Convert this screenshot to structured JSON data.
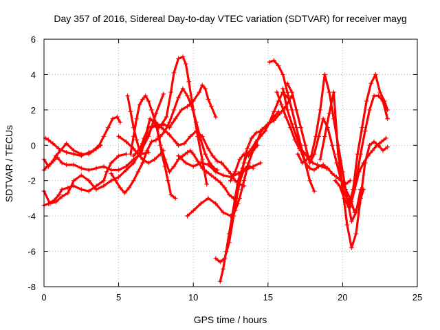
{
  "chart_data": {
    "type": "scatter",
    "title": "Day 357 of 2016, Sidereal Day-to-day VTEC variation (SDTVAR) for receiver mayg",
    "xlabel": "GPS time / hours",
    "ylabel": "SDTVAR / TECUs",
    "xlim": [
      0,
      25
    ],
    "ylim": [
      -8,
      6
    ],
    "xticks": [
      0,
      5,
      10,
      15,
      20,
      25
    ],
    "yticks": [
      -8,
      -6,
      -4,
      -2,
      0,
      2,
      4,
      6
    ],
    "grid": true,
    "marker": "+",
    "color": "#ff0000",
    "series": [
      {
        "x": [
          0.0,
          0.2,
          0.5,
          0.8,
          1.1,
          1.5,
          2.0,
          2.5,
          3.0,
          3.5,
          3.8
        ],
        "y": [
          -1.4,
          -1.2,
          -1.0,
          -0.6,
          -0.3,
          0.1,
          -0.3,
          -0.5,
          -0.5,
          -0.2,
          0.0
        ]
      },
      {
        "x": [
          0.1,
          0.3,
          0.6,
          1.0,
          1.5,
          2.0,
          2.5,
          3.0,
          3.3,
          3.7,
          4.0,
          4.3,
          4.6,
          4.9,
          5.1
        ],
        "y": [
          0.4,
          0.3,
          0.1,
          -0.2,
          -0.4,
          -0.5,
          -0.6,
          -0.4,
          -0.3,
          0.0,
          0.5,
          1.0,
          1.5,
          1.6,
          1.3
        ]
      },
      {
        "x": [
          0.0,
          0.3,
          0.6,
          0.9,
          1.2,
          1.5,
          2.0,
          2.5,
          3.0,
          3.5,
          4.0,
          4.5,
          5.0,
          5.5,
          6.0,
          6.5,
          7.0
        ],
        "y": [
          -0.8,
          -1.2,
          -0.9,
          -0.7,
          -1.0,
          -1.1,
          -1.1,
          -1.3,
          -1.4,
          -1.3,
          -1.2,
          -1.4,
          -1.4,
          -1.2,
          -0.8,
          -0.5,
          -0.4
        ]
      },
      {
        "x": [
          0.0,
          0.3,
          0.7,
          1.0,
          1.2,
          1.6,
          2.0,
          2.5,
          3.0,
          3.5,
          4.0,
          4.2,
          4.5,
          5.0,
          5.5
        ],
        "y": [
          -3.4,
          -3.3,
          -3.1,
          -2.8,
          -2.5,
          -2.4,
          -2.3,
          -2.5,
          -2.6,
          -2.3,
          -2.0,
          -1.5,
          -1.0,
          -0.6,
          -0.5
        ]
      },
      {
        "x": [
          0.0,
          0.4,
          0.8,
          1.2,
          1.6,
          2.0,
          2.5,
          3.0,
          3.5,
          4.0,
          4.5,
          5.0,
          5.5,
          6.0,
          6.5,
          7.0,
          7.5,
          8.0
        ],
        "y": [
          -2.6,
          -3.3,
          -3.2,
          -2.9,
          -2.7,
          -2.0,
          -1.7,
          -2.0,
          -2.5,
          -2.3,
          -2.0,
          -1.8,
          -1.4,
          -1.0,
          -0.3,
          0.5,
          1.8,
          2.9
        ]
      },
      {
        "x": [
          4.5,
          4.8,
          5.1,
          5.4,
          5.7,
          6.0,
          6.3,
          6.6,
          6.9,
          7.2,
          7.5,
          7.8,
          8.1,
          8.4,
          8.7,
          9.0,
          9.3,
          9.6,
          9.9,
          10.2,
          10.5,
          10.8,
          11.1,
          11.4,
          11.6
        ],
        "y": [
          -1.6,
          -2.0,
          -2.4,
          -2.7,
          -2.4,
          -2.0,
          -1.5,
          -1.0,
          -0.3,
          0.2,
          0.3,
          0.5,
          0.8,
          1.3,
          2.0,
          2.7,
          3.2,
          2.8,
          2.2,
          1.3,
          0.3,
          -0.5,
          -1.0,
          -1.3,
          -1.4
        ]
      },
      {
        "x": [
          5.0,
          5.5,
          6.0,
          6.3,
          6.6,
          7.0,
          7.4,
          7.8,
          8.0
        ],
        "y": [
          0.5,
          0.2,
          -0.2,
          -0.5,
          -0.8,
          -1.0,
          -0.8,
          -0.5,
          -0.3
        ]
      },
      {
        "x": [
          5.8,
          6.0,
          6.2,
          6.4,
          6.6,
          6.8,
          7.0,
          7.2,
          7.5,
          7.8,
          8.1,
          8.4,
          8.7,
          9.0,
          9.3,
          9.6,
          9.8,
          10.0,
          10.3,
          10.6,
          10.9,
          11.2,
          11.5,
          11.8,
          12.1,
          12.4,
          12.7,
          13.0
        ],
        "y": [
          -0.5,
          0.5,
          1.5,
          2.3,
          2.6,
          2.8,
          2.5,
          2.0,
          1.2,
          0.0,
          -0.8,
          -1.5,
          -1.2,
          -0.8,
          -0.6,
          -0.4,
          -0.3,
          -0.5,
          -0.9,
          -1.3,
          -1.5,
          -1.7,
          -1.9,
          -2.1,
          -2.4,
          -2.8,
          -3.0,
          -3.3
        ]
      },
      {
        "x": [
          5.6,
          5.8,
          6.0,
          6.2,
          6.4,
          6.7,
          7.0,
          7.3,
          7.6,
          7.9,
          8.2,
          8.5,
          8.7,
          9.0,
          9.3,
          9.5,
          9.7,
          10.0,
          10.3,
          10.6,
          10.9
        ],
        "y": [
          2.8,
          1.9,
          1.0,
          0.3,
          -0.3,
          0.4,
          1.0,
          1.1,
          1.0,
          1.2,
          1.6,
          3.0,
          4.1,
          4.9,
          5.0,
          4.6,
          3.6,
          2.0,
          0.5,
          -0.8,
          -2.2
        ]
      },
      {
        "x": [
          6.0,
          6.3,
          6.6,
          6.9,
          7.2,
          7.6,
          8.0,
          8.4,
          8.8,
          9.0,
          9.4,
          9.8,
          10.2,
          10.6,
          11.0,
          11.3,
          11.6,
          11.9,
          12.2,
          12.5,
          12.8,
          13.1,
          13.4
        ],
        "y": [
          -0.6,
          -0.3,
          0.1,
          0.5,
          1.0,
          1.2,
          0.9,
          0.6,
          0.2,
          0.0,
          0.1,
          0.5,
          0.8,
          0.5,
          -0.2,
          -0.6,
          -0.9,
          -1.0,
          -1.3,
          -1.6,
          -2.0,
          -2.2,
          -2.3
        ]
      },
      {
        "x": [
          6.5,
          6.8,
          7.1,
          7.4,
          7.7,
          8.0,
          8.4,
          8.8,
          9.2,
          9.6,
          10.0,
          10.4,
          10.6,
          10.8,
          11.0,
          11.2,
          11.5
        ],
        "y": [
          -0.5,
          0.5,
          1.5,
          1.3,
          1.0,
          1.2,
          1.0,
          1.5,
          2.0,
          2.2,
          2.5,
          3.0,
          3.4,
          3.2,
          2.6,
          2.2,
          1.6
        ]
      },
      {
        "x": [
          7.5,
          7.7,
          7.9,
          8.1,
          8.3,
          8.5,
          8.8
        ],
        "y": [
          1.3,
          0.5,
          -0.5,
          -1.2,
          -2.0,
          -2.8,
          -3.0
        ]
      },
      {
        "x": [
          9.0,
          9.5,
          10.0,
          10.5,
          11.0,
          11.5,
          12.0,
          12.5,
          13.0,
          13.5,
          14.0,
          14.5
        ],
        "y": [
          -0.6,
          -1.0,
          -1.2,
          -1.0,
          -1.1,
          -1.5,
          -1.7,
          -1.8,
          -1.6,
          -1.4,
          -1.2,
          -1.0
        ]
      },
      {
        "x": [
          9.6,
          10.0,
          10.5,
          11.0,
          11.5,
          12.0,
          12.5,
          12.8,
          13.1,
          13.4,
          13.7,
          14.0,
          14.3
        ],
        "y": [
          -4.0,
          -3.7,
          -3.3,
          -3.0,
          -3.3,
          -3.8,
          -4.0,
          -3.7,
          -3.0,
          -2.0,
          -1.0,
          -0.3,
          0.0
        ]
      },
      {
        "x": [
          11.5,
          11.8,
          12.1,
          12.4,
          12.7,
          13.0,
          13.2,
          13.4,
          13.6,
          13.8,
          14.0
        ],
        "y": [
          -6.4,
          -6.6,
          -6.4,
          -5.5,
          -4.0,
          -2.5,
          -1.8,
          -1.4,
          -1.2,
          -1.2,
          -1.3
        ]
      },
      {
        "x": [
          11.8,
          12.0,
          12.2,
          12.4,
          12.6,
          12.8,
          13.0,
          13.2,
          13.4,
          13.6,
          13.9,
          14.2,
          14.5,
          14.8,
          15.1,
          15.4,
          15.7,
          16.0,
          16.3
        ],
        "y": [
          -7.7,
          -7.0,
          -6.0,
          -5.0,
          -4.0,
          -3.0,
          -2.0,
          -1.5,
          -1.0,
          -0.5,
          -0.2,
          0.2,
          0.5,
          0.8,
          1.3,
          1.9,
          2.5,
          3.0,
          2.7
        ]
      },
      {
        "x": [
          12.5,
          12.8,
          13.1,
          13.4,
          13.7,
          14.0,
          14.3,
          14.6,
          15.0,
          15.4,
          15.8,
          16.2,
          16.6
        ],
        "y": [
          -2.0,
          -1.5,
          -0.8,
          -0.5,
          -0.6,
          -0.3,
          0.3,
          0.9,
          1.2,
          1.4,
          1.8,
          2.2,
          2.8
        ]
      },
      {
        "x": [
          13.0,
          13.3,
          13.6,
          13.9,
          14.2,
          14.5,
          14.8,
          15.1,
          15.4,
          15.7
        ],
        "y": [
          -2.2,
          -1.3,
          -0.2,
          0.4,
          0.7,
          0.8,
          1.0,
          1.3,
          1.6,
          1.9
        ]
      },
      {
        "x": [
          15.1,
          15.4,
          15.7,
          16.0,
          16.3,
          16.6,
          16.9,
          17.2,
          17.5,
          17.8,
          18.1
        ],
        "y": [
          4.7,
          4.8,
          4.5,
          4.0,
          3.0,
          2.0,
          1.0,
          0.0,
          -1.0,
          -2.0,
          -2.6
        ]
      },
      {
        "x": [
          15.6,
          15.9,
          16.2,
          16.5,
          16.8,
          17.1,
          17.4,
          17.7,
          18.0,
          18.3,
          18.6,
          18.9
        ],
        "y": [
          3.0,
          2.3,
          1.6,
          1.0,
          0.3,
          -0.2,
          -0.4,
          -0.7,
          -1.0,
          -1.1,
          -1.2,
          -1.3
        ]
      },
      {
        "x": [
          16.0,
          16.3,
          16.6,
          16.9,
          17.2,
          17.5,
          17.8,
          18.1,
          18.4,
          18.7,
          19.0,
          19.3,
          19.6,
          19.9,
          20.2,
          20.5
        ],
        "y": [
          3.2,
          2.0,
          1.2,
          0.5,
          -0.3,
          -1.0,
          -1.3,
          -1.4,
          -1.2,
          -1.1,
          -1.3,
          -1.6,
          -1.8,
          -2.0,
          -2.2,
          -2.0
        ]
      },
      {
        "x": [
          16.3,
          16.6,
          16.9,
          17.2,
          17.5,
          17.8,
          18.1,
          18.4,
          18.7,
          19.0,
          19.3,
          19.6,
          19.9,
          20.2,
          20.5,
          20.8,
          21.1,
          21.4
        ],
        "y": [
          3.5,
          3.0,
          2.0,
          1.0,
          0.0,
          -1.0,
          -0.5,
          0.5,
          1.5,
          1.0,
          0.0,
          -1.0,
          -2.0,
          -2.5,
          -3.0,
          -3.8,
          -3.3,
          -2.5
        ]
      },
      {
        "x": [
          17.0,
          17.3,
          17.6,
          17.9,
          18.2,
          18.5,
          18.8,
          19.1,
          19.4,
          19.7,
          20.0,
          20.3,
          20.6,
          20.9,
          21.2
        ],
        "y": [
          -0.5,
          -1.0,
          -0.8,
          -0.6,
          0.5,
          2.0,
          4.0,
          3.0,
          1.5,
          0.0,
          -1.5,
          -3.0,
          -4.3,
          -3.8,
          -2.5
        ]
      },
      {
        "x": [
          18.5,
          18.8,
          19.1,
          19.4,
          19.7,
          20.0,
          20.3,
          20.6,
          20.9,
          21.2,
          21.5,
          21.8,
          22.1,
          22.4,
          22.7,
          23.0
        ],
        "y": [
          -0.8,
          0.5,
          1.8,
          3.0,
          -0.5,
          -2.5,
          -4.5,
          -5.8,
          -5.0,
          -3.0,
          -1.0,
          0.0,
          0.2,
          0.0,
          -0.3,
          -0.1
        ]
      },
      {
        "x": [
          19.5,
          19.8,
          20.1,
          20.4,
          20.7,
          21.0,
          21.3,
          21.6,
          21.9,
          22.2,
          22.5,
          22.8,
          23.0
        ],
        "y": [
          -2.0,
          -2.3,
          -3.0,
          -3.5,
          -2.5,
          -0.5,
          1.0,
          2.5,
          3.5,
          4.0,
          3.0,
          2.5,
          2.0
        ]
      },
      {
        "x": [
          20.0,
          20.3,
          20.6,
          20.9,
          21.2,
          21.5,
          21.8,
          22.1,
          22.4,
          22.7,
          23.0
        ],
        "y": [
          -2.5,
          -3.0,
          -3.2,
          -2.0,
          -0.5,
          0.8,
          2.0,
          2.8,
          2.8,
          2.5,
          1.5
        ]
      },
      {
        "x": [
          20.5,
          20.8,
          21.1,
          21.4,
          21.7,
          22.0,
          22.3,
          22.6,
          22.9
        ],
        "y": [
          -3.5,
          -2.5,
          -1.5,
          -1.0,
          -0.6,
          -0.3,
          0.0,
          0.2,
          0.4
        ]
      }
    ]
  }
}
